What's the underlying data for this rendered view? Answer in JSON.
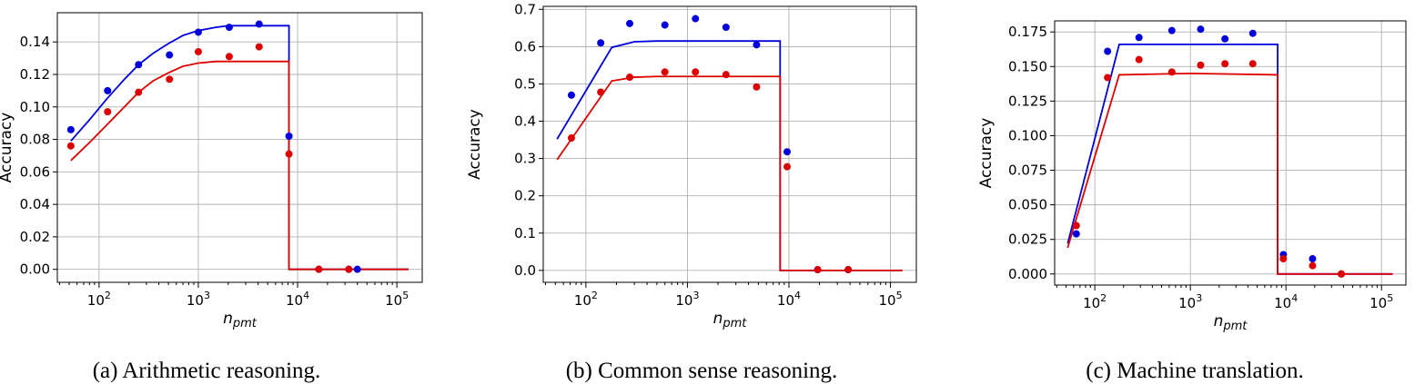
{
  "chart_data": [
    {
      "type": "line",
      "caption": "(a) Arithmetic reasoning.",
      "xlabel": "n",
      "xlabel_sub": "pmt",
      "ylabel": "Accuracy",
      "xscale": "log",
      "xlim": [
        38,
        180000
      ],
      "ylim": [
        -0.008,
        0.158
      ],
      "yticks": [
        "0.00",
        "0.02",
        "0.04",
        "0.06",
        "0.08",
        "0.10",
        "0.12",
        "0.14"
      ],
      "ytick_values": [
        0,
        0.02,
        0.04,
        0.06,
        0.08,
        0.1,
        0.12,
        0.14
      ],
      "xticks": [
        {
          "base": "10",
          "exp": "2",
          "value": 100
        },
        {
          "base": "10",
          "exp": "3",
          "value": 1000
        },
        {
          "base": "10",
          "exp": "4",
          "value": 10000
        },
        {
          "base": "10",
          "exp": "5",
          "value": 100000
        }
      ],
      "grid": true,
      "series": [
        {
          "name": "blue",
          "color": "#0000dd",
          "line": {
            "x": [
              52,
              80,
              120,
              180,
              250,
              350,
              500,
              700,
              1000,
              1500,
              2000,
              3000,
              4000,
              6000,
              8192,
              8193,
              16384,
              131072
            ],
            "y": [
              0.079,
              0.092,
              0.105,
              0.117,
              0.126,
              0.133,
              0.139,
              0.144,
              0.147,
              0.149,
              0.15,
              0.15,
              0.15,
              0.15,
              0.15,
              0.0,
              0.0,
              0.0
            ]
          },
          "points": {
            "x": [
              52,
              122,
              250,
              512,
              1000,
              2048,
              4096,
              8192,
              16384,
              32768,
              40000
            ],
            "y": [
              0.086,
              0.11,
              0.126,
              0.132,
              0.146,
              0.149,
              0.151,
              0.082,
              0.0,
              0.0,
              0.0
            ]
          }
        },
        {
          "name": "red",
          "color": "#dd0000",
          "line": {
            "x": [
              52,
              80,
              120,
              180,
              250,
              350,
              500,
              700,
              1000,
              1500,
              2000,
              3000,
              4000,
              6000,
              8192,
              8193,
              16384,
              131072
            ],
            "y": [
              0.067,
              0.078,
              0.089,
              0.1,
              0.109,
              0.116,
              0.121,
              0.125,
              0.127,
              0.128,
              0.128,
              0.128,
              0.128,
              0.128,
              0.128,
              0.0,
              0.0,
              0.0
            ]
          },
          "points": {
            "x": [
              52,
              122,
              250,
              512,
              1000,
              2048,
              4096,
              8192,
              16384,
              32768
            ],
            "y": [
              0.076,
              0.097,
              0.109,
              0.117,
              0.134,
              0.131,
              0.137,
              0.071,
              0.0,
              0.0
            ]
          }
        }
      ]
    },
    {
      "type": "line",
      "caption": "(b) Common sense reasoning.",
      "xlabel": "n",
      "xlabel_sub": "pmt",
      "ylabel": "Accuracy",
      "xscale": "log",
      "xlim": [
        38,
        180000
      ],
      "ylim": [
        -0.032,
        0.708
      ],
      "yticks": [
        "0.0",
        "0.1",
        "0.2",
        "0.3",
        "0.4",
        "0.5",
        "0.6",
        "0.7"
      ],
      "ytick_values": [
        0,
        0.1,
        0.2,
        0.3,
        0.4,
        0.5,
        0.6,
        0.7
      ],
      "xticks": [
        {
          "base": "10",
          "exp": "2",
          "value": 100
        },
        {
          "base": "10",
          "exp": "3",
          "value": 1000
        },
        {
          "base": "10",
          "exp": "4",
          "value": 10000
        },
        {
          "base": "10",
          "exp": "5",
          "value": 100000
        }
      ],
      "grid": true,
      "series": [
        {
          "name": "blue",
          "color": "#0000dd",
          "line": {
            "x": [
              52,
              180,
              300,
              500,
              8192,
              8193,
              131072
            ],
            "y": [
              0.352,
              0.598,
              0.613,
              0.615,
              0.615,
              0.0,
              0.0
            ]
          },
          "points": {
            "x": [
              72,
              140,
              270,
              600,
              1200,
              2400,
              4800,
              9600,
              19200,
              38400
            ],
            "y": [
              0.47,
              0.61,
              0.662,
              0.658,
              0.675,
              0.652,
              0.605,
              0.318,
              0.002,
              0.002
            ]
          }
        },
        {
          "name": "red",
          "color": "#dd0000",
          "line": {
            "x": [
              52,
              180,
              300,
              500,
              8192,
              8193,
              131072
            ],
            "y": [
              0.297,
              0.508,
              0.518,
              0.52,
              0.52,
              0.0,
              0.0
            ]
          },
          "points": {
            "x": [
              72,
              140,
              270,
              600,
              1200,
              2400,
              4800,
              9600,
              19200,
              38400
            ],
            "y": [
              0.355,
              0.478,
              0.518,
              0.532,
              0.532,
              0.525,
              0.492,
              0.278,
              0.002,
              0.002
            ]
          }
        }
      ]
    },
    {
      "type": "line",
      "caption": "(c) Machine translation.",
      "xlabel": "n",
      "xlabel_sub": "pmt",
      "ylabel": "Accuracy",
      "xscale": "log",
      "xlim": [
        38,
        180000
      ],
      "ylim": [
        -0.008,
        0.183
      ],
      "yticks": [
        "0.000",
        "0.025",
        "0.050",
        "0.075",
        "0.100",
        "0.125",
        "0.150",
        "0.175"
      ],
      "ytick_values": [
        0,
        0.025,
        0.05,
        0.075,
        0.1,
        0.125,
        0.15,
        0.175
      ],
      "xticks": [
        {
          "base": "10",
          "exp": "2",
          "value": 100
        },
        {
          "base": "10",
          "exp": "3",
          "value": 1000
        },
        {
          "base": "10",
          "exp": "4",
          "value": 10000
        },
        {
          "base": "10",
          "exp": "5",
          "value": 100000
        }
      ],
      "grid": true,
      "series": [
        {
          "name": "blue",
          "color": "#0000dd",
          "line": {
            "x": [
              52,
              180,
              8192,
              8193,
              131072
            ],
            "y": [
              0.022,
              0.166,
              0.166,
              0.0,
              0.0
            ]
          },
          "points": {
            "x": [
              64,
              136,
              290,
              640,
              1280,
              2300,
              4500,
              9400,
              19000,
              38000
            ],
            "y": [
              0.029,
              0.161,
              0.171,
              0.176,
              0.177,
              0.17,
              0.174,
              0.014,
              0.011,
              0.0
            ]
          }
        },
        {
          "name": "red",
          "color": "#dd0000",
          "line": {
            "x": [
              52,
              180,
              1000,
              8192,
              8193,
              131072
            ],
            "y": [
              0.019,
              0.144,
              0.145,
              0.144,
              0.0,
              0.0
            ]
          },
          "points": {
            "x": [
              64,
              136,
              290,
              640,
              1280,
              2300,
              4500,
              9400,
              19000,
              38000
            ],
            "y": [
              0.035,
              0.142,
              0.155,
              0.146,
              0.151,
              0.152,
              0.152,
              0.011,
              0.006,
              0.0
            ]
          }
        }
      ]
    }
  ]
}
